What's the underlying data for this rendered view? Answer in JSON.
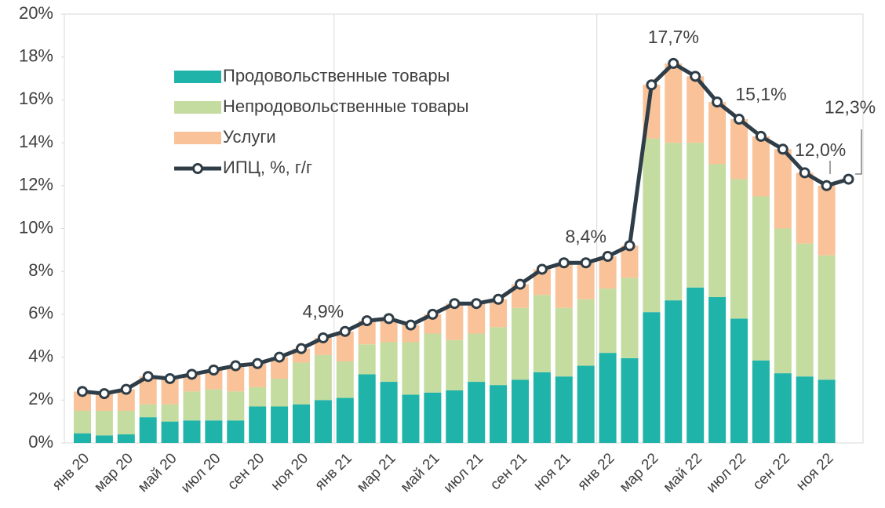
{
  "chart_data": {
    "type": "bar",
    "stacked": true,
    "categories": [
      "янв 20",
      null,
      "мар 20",
      null,
      "май 20",
      null,
      "июл 20",
      null,
      "сен 20",
      null,
      "ноя 20",
      null,
      "янв 21",
      null,
      "мар 21",
      null,
      "май 21",
      null,
      "июл 21",
      null,
      "сен 21",
      null,
      "ноя 21",
      null,
      "янв 22",
      null,
      "мар 22",
      null,
      "май 22",
      null,
      "июл 22",
      null,
      "сен 22",
      null,
      "ноя 22",
      null
    ],
    "ylim": [
      0,
      20
    ],
    "yticks": [
      {
        "value": 0,
        "label": "0%"
      },
      {
        "value": 2,
        "label": "2%"
      },
      {
        "value": 4,
        "label": "4%"
      },
      {
        "value": 6,
        "label": "6%"
      },
      {
        "value": 8,
        "label": "8%"
      },
      {
        "value": 10,
        "label": "10%"
      },
      {
        "value": 12,
        "label": "12%"
      },
      {
        "value": 14,
        "label": "14%"
      },
      {
        "value": 16,
        "label": "16%"
      },
      {
        "value": 18,
        "label": "18%"
      },
      {
        "value": 20,
        "label": "20%"
      }
    ],
    "grid": false,
    "legend": "upper left",
    "series": [
      {
        "name": "Продовольственные товары",
        "color": "#1fb3a9",
        "type": "bar",
        "values": [
          0.45,
          0.35,
          0.4,
          1.2,
          1.0,
          1.05,
          1.05,
          1.05,
          1.7,
          1.7,
          1.8,
          2.0,
          2.1,
          3.2,
          2.85,
          2.25,
          2.35,
          2.45,
          2.85,
          2.7,
          2.95,
          3.3,
          3.1,
          3.6,
          4.2,
          3.95,
          6.1,
          6.65,
          7.25,
          6.8,
          5.8,
          3.85,
          3.25,
          3.1,
          2.95,
          null
        ]
      },
      {
        "name": "Непродовольственные товары",
        "color": "#c4dca0",
        "type": "bar",
        "values": [
          1.05,
          1.15,
          1.1,
          0.6,
          0.8,
          1.35,
          1.45,
          1.35,
          0.9,
          1.3,
          1.95,
          2.1,
          1.7,
          1.4,
          1.85,
          2.45,
          2.75,
          2.35,
          2.25,
          2.7,
          3.35,
          3.6,
          3.2,
          3.1,
          3.0,
          3.75,
          8.1,
          7.35,
          6.75,
          6.2,
          6.5,
          7.65,
          6.75,
          6.2,
          5.8,
          null
        ]
      },
      {
        "name": "Услуги",
        "color": "#f9c298",
        "type": "bar",
        "values": [
          0.9,
          0.8,
          1.0,
          1.3,
          1.2,
          0.8,
          0.9,
          1.2,
          1.1,
          1.0,
          0.65,
          0.8,
          1.4,
          1.1,
          1.1,
          0.8,
          0.9,
          1.7,
          1.4,
          1.3,
          1.1,
          1.2,
          2.1,
          1.7,
          1.5,
          1.5,
          2.5,
          3.7,
          3.1,
          2.9,
          2.8,
          2.8,
          3.7,
          3.3,
          3.25,
          null
        ]
      },
      {
        "name": "ИПЦ, %, г/г",
        "color": "#2e3d47",
        "type": "line",
        "values": [
          2.4,
          2.3,
          2.5,
          3.1,
          3.0,
          3.2,
          3.4,
          3.6,
          3.7,
          4.0,
          4.4,
          4.9,
          5.2,
          5.7,
          5.8,
          5.5,
          6.0,
          6.5,
          6.5,
          6.7,
          7.4,
          8.1,
          8.4,
          8.4,
          8.7,
          9.2,
          16.7,
          17.7,
          17.1,
          15.9,
          15.1,
          14.3,
          13.7,
          12.6,
          12.0,
          12.3
        ],
        "value_labels": [
          null,
          null,
          null,
          null,
          null,
          null,
          null,
          null,
          null,
          null,
          null,
          "4,9%",
          null,
          null,
          null,
          null,
          null,
          null,
          null,
          null,
          null,
          null,
          null,
          "8,4%",
          null,
          null,
          null,
          "17,7%",
          null,
          null,
          "15,1%",
          null,
          null,
          null,
          "12,0%",
          "12,3%"
        ]
      }
    ]
  }
}
